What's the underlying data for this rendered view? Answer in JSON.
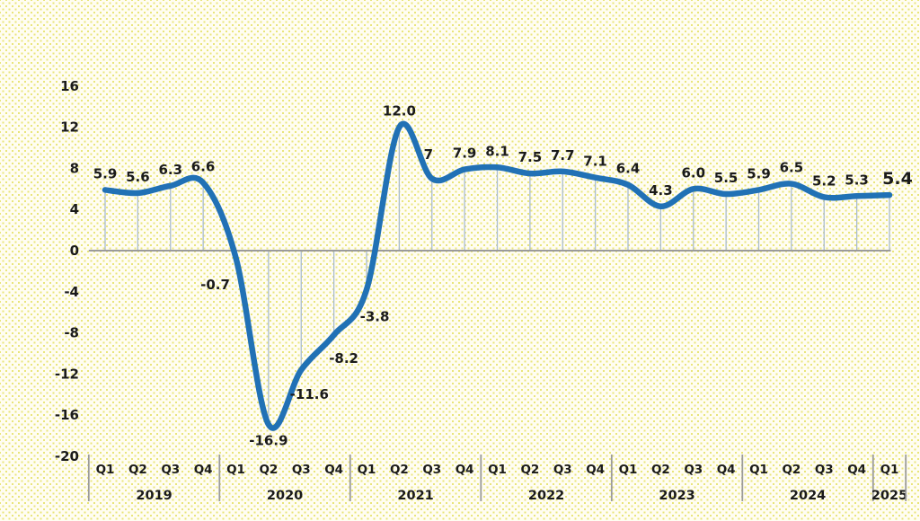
{
  "chart_data": {
    "type": "line",
    "title": "",
    "y_axis": {
      "ticks": [
        16,
        12,
        8,
        4,
        0,
        -4,
        -8,
        -12,
        -16,
        -20
      ],
      "min": -20,
      "max": 16,
      "grid": false
    },
    "x_axis": {
      "unit": "quarter",
      "year_groups": [
        "2019",
        "2020",
        "2021",
        "2022",
        "2023",
        "2024",
        "2025"
      ]
    },
    "points": [
      {
        "quarter": "Q1",
        "year": "2019",
        "value": 5.9,
        "label": "5.9"
      },
      {
        "quarter": "Q2",
        "year": "2019",
        "value": 5.6,
        "label": "5.6"
      },
      {
        "quarter": "Q3",
        "year": "2019",
        "value": 6.3,
        "label": "6.3"
      },
      {
        "quarter": "Q4",
        "year": "2019",
        "value": 6.6,
        "label": "6.6"
      },
      {
        "quarter": "Q1",
        "year": "2020",
        "value": -0.7,
        "label": "-0.7",
        "label_offset": [
          -23,
          35
        ]
      },
      {
        "quarter": "Q2",
        "year": "2020",
        "value": -16.9,
        "label": "-16.9",
        "label_offset": [
          0,
          23
        ]
      },
      {
        "quarter": "Q3",
        "year": "2020",
        "value": -11.6,
        "label": "-11.6",
        "label_offset": [
          9,
          32
        ]
      },
      {
        "quarter": "Q4",
        "year": "2020",
        "value": -8.2,
        "label": "-8.2",
        "label_offset": [
          11,
          31
        ]
      },
      {
        "quarter": "Q1",
        "year": "2021",
        "value": -3.8,
        "label": "-3.8",
        "label_offset": [
          9,
          35
        ]
      },
      {
        "quarter": "Q2",
        "year": "2021",
        "value": 12.0,
        "label": "12.0"
      },
      {
        "quarter": "Q3",
        "year": "2021",
        "value": 7.0,
        "label": "7",
        "label_offset": [
          -4,
          -22
        ]
      },
      {
        "quarter": "Q4",
        "year": "2021",
        "value": 7.9,
        "label": "7.9"
      },
      {
        "quarter": "Q1",
        "year": "2022",
        "value": 8.1,
        "label": "8.1"
      },
      {
        "quarter": "Q2",
        "year": "2022",
        "value": 7.5,
        "label": "7.5"
      },
      {
        "quarter": "Q3",
        "year": "2022",
        "value": 7.7,
        "label": "7.7"
      },
      {
        "quarter": "Q4",
        "year": "2022",
        "value": 7.1,
        "label": "7.1"
      },
      {
        "quarter": "Q1",
        "year": "2023",
        "value": 6.4,
        "label": "6.4"
      },
      {
        "quarter": "Q2",
        "year": "2023",
        "value": 4.3,
        "label": "4.3"
      },
      {
        "quarter": "Q3",
        "year": "2023",
        "value": 6.0,
        "label": "6.0"
      },
      {
        "quarter": "Q4",
        "year": "2023",
        "value": 5.5,
        "label": "5.5"
      },
      {
        "quarter": "Q1",
        "year": "2024",
        "value": 5.9,
        "label": "5.9"
      },
      {
        "quarter": "Q2",
        "year": "2024",
        "value": 6.5,
        "label": "6.5"
      },
      {
        "quarter": "Q3",
        "year": "2024",
        "value": 5.2,
        "label": "5.2"
      },
      {
        "quarter": "Q4",
        "year": "2024",
        "value": 5.3,
        "label": "5.3"
      },
      {
        "quarter": "Q1",
        "year": "2025",
        "value": 5.4,
        "label": "5.4",
        "label_offset": [
          9,
          -12
        ],
        "emphasis": true
      }
    ],
    "style": {
      "line_color": "#2171b5",
      "drop_line_color": "#a9bccf",
      "axis_color": "#9b9b9b",
      "label_color": "#1a1a1a",
      "background": "#fffdf2",
      "background_dot": "#e9e57a"
    }
  }
}
